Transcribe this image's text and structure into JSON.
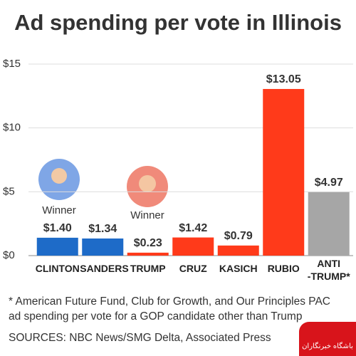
{
  "chart_data": {
    "type": "bar",
    "title": "Ad spending per vote in Illinois",
    "categories": [
      "CLINTON",
      "SANDERS",
      "TRUMP",
      "CRUZ",
      "KASICH",
      "RUBIO",
      "ANTI\n-TRUMP*"
    ],
    "values": [
      1.4,
      1.34,
      0.23,
      1.42,
      0.79,
      13.05,
      4.97
    ],
    "value_labels": [
      "$1.40",
      "$1.34",
      "$0.23",
      "$1.42",
      "$0.79",
      "$13.05",
      "$4.97"
    ],
    "colors": [
      "#1e6bc8",
      "#1e6bc8",
      "#ff3a1a",
      "#ff3a1a",
      "#ff3a1a",
      "#ff3a1a",
      "#a6a6a6"
    ],
    "ylim": [
      0,
      15
    ],
    "yticks": [
      {
        "value": 0,
        "label": "$0"
      },
      {
        "value": 5,
        "label": "$5"
      },
      {
        "value": 10,
        "label": "$10"
      },
      {
        "value": 15,
        "label": "$15"
      }
    ],
    "grid": true,
    "annotations": [
      "Winner",
      "Winner"
    ],
    "footnote": "* American Future Fund, Club for Growth, and Our Principles PAC ad spending per vote for a GOP candidate other than Trump",
    "source": "SOURCES: NBC News/SMG Delta, Associated Press"
  },
  "watermark": "باشگاه خبرنگاران"
}
